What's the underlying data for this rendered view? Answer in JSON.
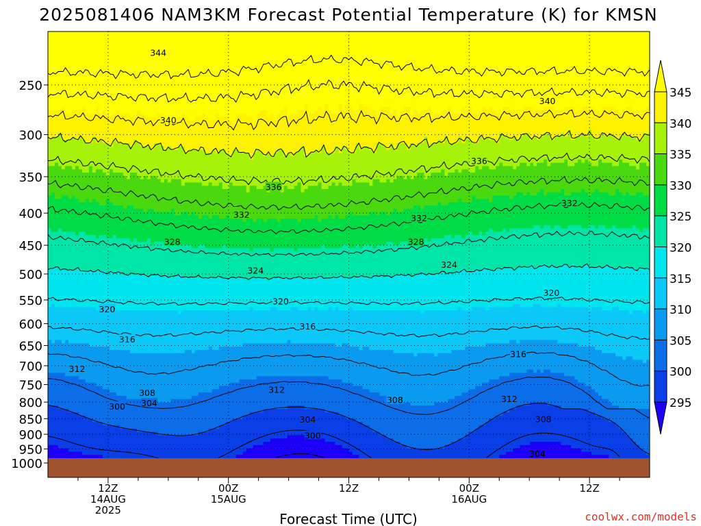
{
  "title": "2025081406 NAM3KM Forecast Potential Temperature (K) for KMSN",
  "credit": "coolwx.com/models",
  "chart_data": {
    "type": "contour",
    "title": "2025081406 NAM3KM Forecast Potential Temperature (K) for KMSN",
    "xlabel": "Forecast Time (UTC)",
    "ylabel": "",
    "x_ticks": [
      {
        "hour": 6,
        "lines": [
          "12Z",
          "14AUG",
          "2025"
        ]
      },
      {
        "hour": 18,
        "lines": [
          "00Z",
          "15AUG"
        ]
      },
      {
        "hour": 30,
        "lines": [
          "12Z"
        ]
      },
      {
        "hour": 42,
        "lines": [
          "00Z",
          "16AUG"
        ]
      },
      {
        "hour": 54,
        "lines": [
          "12Z"
        ]
      }
    ],
    "xlim": [
      0,
      60
    ],
    "y_ticks": [
      "250",
      "300",
      "350",
      "400",
      "450",
      "500",
      "550",
      "600",
      "650",
      "700",
      "750",
      "800",
      "850",
      "900",
      "950",
      "1000"
    ],
    "ylim": [
      980,
      200
    ],
    "y_scale": "log",
    "grid": true,
    "ground_pressure": 980,
    "colorbar": {
      "levels": [
        "295",
        "300",
        "305",
        "310",
        "315",
        "320",
        "325",
        "330",
        "335",
        "340",
        "345"
      ],
      "colors": [
        "#1c00f8",
        "#0a3ee6",
        "#0b6ee8",
        "#0a9bf0",
        "#0bc8f8",
        "#00e6ee",
        "#00e6a8",
        "#00dc46",
        "#4ad90e",
        "#a6f208",
        "#fff200",
        "#ffff00"
      ]
    },
    "contour_interval": 4,
    "contour_labels": [
      {
        "value": "344",
        "hour": 11.0,
        "p": 222
      },
      {
        "value": "340",
        "hour": 12.0,
        "p": 284
      },
      {
        "value": "340",
        "hour": 49.8,
        "p": 265
      },
      {
        "value": "336",
        "hour": 22.5,
        "p": 363
      },
      {
        "value": "336",
        "hour": 43.0,
        "p": 330
      },
      {
        "value": "332",
        "hour": 19.3,
        "p": 402
      },
      {
        "value": "332",
        "hour": 37.0,
        "p": 407
      },
      {
        "value": "332",
        "hour": 52.0,
        "p": 385
      },
      {
        "value": "328",
        "hour": 12.4,
        "p": 444
      },
      {
        "value": "328",
        "hour": 36.7,
        "p": 444
      },
      {
        "value": "324",
        "hour": 20.7,
        "p": 493
      },
      {
        "value": "324",
        "hour": 40.0,
        "p": 483
      },
      {
        "value": "320",
        "hour": 5.9,
        "p": 568
      },
      {
        "value": "320",
        "hour": 23.2,
        "p": 552
      },
      {
        "value": "320",
        "hour": 50.2,
        "p": 535
      },
      {
        "value": "316",
        "hour": 7.9,
        "p": 635
      },
      {
        "value": "316",
        "hour": 25.9,
        "p": 605
      },
      {
        "value": "316",
        "hour": 46.9,
        "p": 670
      },
      {
        "value": "312",
        "hour": 2.9,
        "p": 707
      },
      {
        "value": "312",
        "hour": 22.8,
        "p": 763
      },
      {
        "value": "312",
        "hour": 46.0,
        "p": 790
      },
      {
        "value": "308",
        "hour": 9.9,
        "p": 772
      },
      {
        "value": "308",
        "hour": 34.6,
        "p": 793
      },
      {
        "value": "308",
        "hour": 49.4,
        "p": 850
      },
      {
        "value": "304",
        "hour": 10.1,
        "p": 802
      },
      {
        "value": "304",
        "hour": 25.9,
        "p": 852
      },
      {
        "value": "304",
        "hour": 48.8,
        "p": 965
      },
      {
        "value": "300",
        "hour": 6.9,
        "p": 812
      },
      {
        "value": "300",
        "hour": 26.4,
        "p": 903
      }
    ]
  }
}
